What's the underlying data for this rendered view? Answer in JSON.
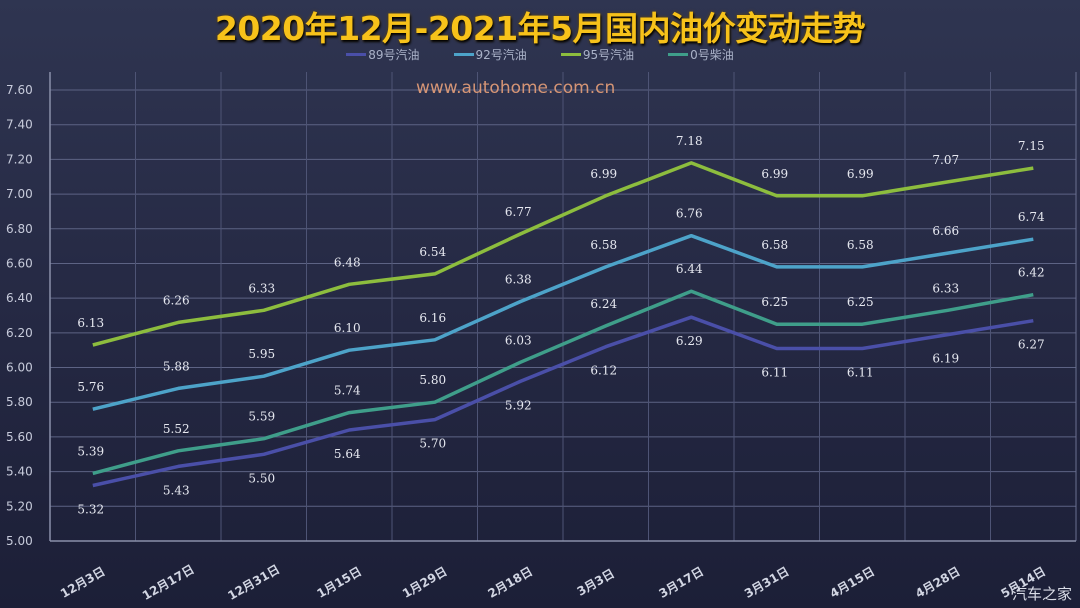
{
  "title": "2020年12月-2021年5月国内油价变动走势",
  "watermark": "www.autohome.com.cn",
  "corner_logo": "汽车之家",
  "legend": [
    {
      "name": "89号汽油",
      "color": "#4a4fa8"
    },
    {
      "name": "92号汽油",
      "color": "#4da3c9"
    },
    {
      "name": "95号汽油",
      "color": "#8dbd3e"
    },
    {
      "name": "0号柴油",
      "color": "#3f9e8a"
    }
  ],
  "chart_data": {
    "type": "line",
    "title": "2020年12月-2021年5月国内油价变动走势",
    "xlabel": "",
    "ylabel": "",
    "ylim": [
      5.0,
      7.6
    ],
    "yticks": [
      "5.00",
      "5.20",
      "5.40",
      "5.60",
      "5.80",
      "6.00",
      "6.20",
      "6.40",
      "6.60",
      "6.80",
      "7.00",
      "7.20",
      "7.40",
      "7.60"
    ],
    "grid": true,
    "legend_position": "top",
    "categories": [
      "12月3日",
      "12月17日",
      "12月31日",
      "1月15日",
      "1月29日",
      "2月18日",
      "3月3日",
      "3月17日",
      "3月31日",
      "4月15日",
      "4月28日",
      "5月14日"
    ],
    "series": [
      {
        "name": "89号汽油",
        "color": "#4a4fa8",
        "label_pos": "below",
        "values": [
          5.32,
          5.43,
          5.5,
          5.64,
          5.7,
          5.92,
          6.12,
          6.29,
          6.11,
          6.11,
          6.19,
          6.27
        ]
      },
      {
        "name": "92号汽油",
        "color": "#4da3c9",
        "label_pos": "above",
        "values": [
          5.76,
          5.88,
          5.95,
          6.1,
          6.16,
          6.38,
          6.58,
          6.76,
          6.58,
          6.58,
          6.66,
          6.74
        ]
      },
      {
        "name": "95号汽油",
        "color": "#8dbd3e",
        "label_pos": "above",
        "values": [
          6.13,
          6.26,
          6.33,
          6.48,
          6.54,
          6.77,
          6.99,
          7.18,
          6.99,
          6.99,
          7.07,
          7.15
        ]
      },
      {
        "name": "0号柴油",
        "color": "#3f9e8a",
        "label_pos": "above",
        "values": [
          5.39,
          5.52,
          5.59,
          5.74,
          5.8,
          6.03,
          6.24,
          6.44,
          6.25,
          6.25,
          6.33,
          6.42
        ]
      }
    ]
  }
}
